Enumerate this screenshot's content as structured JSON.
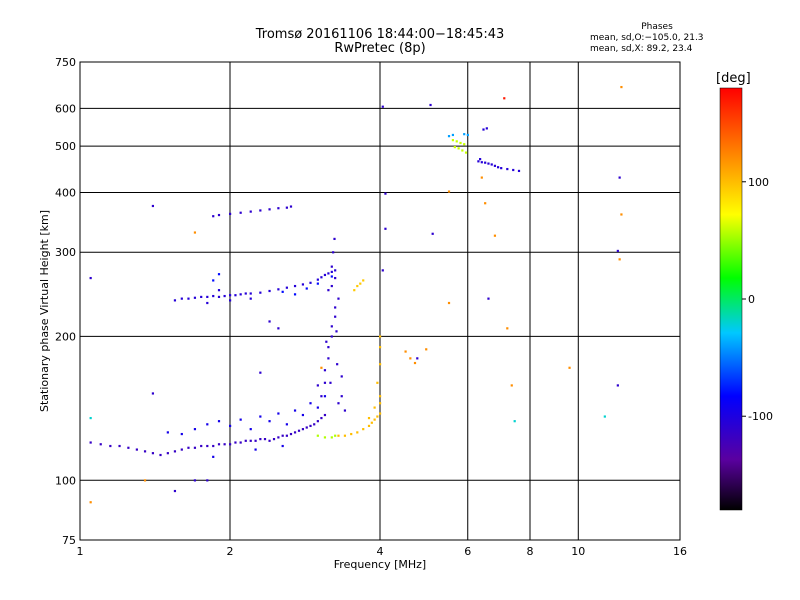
{
  "title": {
    "line1": "Tromsø 20161106 18:44:00−18:45:43",
    "line2": "RwPretec (8p)"
  },
  "phases": {
    "header": "Phases",
    "o_line": "mean, sd,O:−105.0, 21.3",
    "x_line": "mean, sd,X:  89.2, 23.4"
  },
  "chart_data": {
    "type": "scatter",
    "xlabel": "Frequency [MHz]",
    "ylabel": "Stationary phase Virtual Height [km]",
    "x_scale": "log",
    "y_scale": "log",
    "xlim": [
      1,
      16
    ],
    "ylim": [
      75,
      750
    ],
    "x_ticks": [
      1,
      2,
      4,
      6,
      8,
      10,
      16
    ],
    "y_ticks": [
      75,
      100,
      200,
      300,
      400,
      500,
      600,
      750
    ],
    "x_gridlines": [
      2,
      4,
      6,
      8,
      10
    ],
    "y_gridlines": [
      100,
      200,
      300,
      400,
      500,
      600
    ],
    "grid": true,
    "colorbar": {
      "label": "[deg]",
      "range": [
        -180,
        180
      ],
      "ticks": [
        -100,
        0,
        100
      ]
    },
    "clusters": [
      {
        "name": "E-trace",
        "phase": -115,
        "points": [
          [
            1.05,
            120
          ],
          [
            1.1,
            119
          ],
          [
            1.15,
            118
          ],
          [
            1.2,
            118
          ],
          [
            1.25,
            117
          ],
          [
            1.3,
            116
          ],
          [
            1.35,
            115
          ],
          [
            1.4,
            114
          ],
          [
            1.45,
            113
          ],
          [
            1.5,
            114
          ],
          [
            1.55,
            115
          ],
          [
            1.6,
            116
          ],
          [
            1.65,
            117
          ],
          [
            1.7,
            117
          ],
          [
            1.75,
            118
          ],
          [
            1.8,
            118
          ],
          [
            1.85,
            118
          ],
          [
            1.9,
            119
          ],
          [
            1.95,
            119
          ],
          [
            2.0,
            119
          ],
          [
            2.05,
            120
          ],
          [
            2.1,
            120
          ],
          [
            2.15,
            121
          ],
          [
            2.2,
            121
          ],
          [
            2.25,
            121
          ],
          [
            2.3,
            122
          ],
          [
            2.35,
            122
          ],
          [
            2.4,
            121
          ],
          [
            2.45,
            122
          ],
          [
            2.5,
            123
          ],
          [
            2.55,
            124
          ],
          [
            2.6,
            124
          ],
          [
            2.65,
            125
          ],
          [
            2.7,
            126
          ],
          [
            2.75,
            127
          ],
          [
            2.8,
            128
          ],
          [
            2.85,
            129
          ],
          [
            2.9,
            130
          ],
          [
            2.95,
            131
          ],
          [
            3.0,
            133
          ],
          [
            3.05,
            135
          ],
          [
            3.1,
            137
          ]
        ]
      },
      {
        "name": "E-trace-scatter",
        "phase": -95,
        "points": [
          [
            1.5,
            126
          ],
          [
            1.6,
            125
          ],
          [
            1.7,
            128
          ],
          [
            1.8,
            131
          ],
          [
            1.9,
            133
          ],
          [
            2.0,
            130
          ],
          [
            2.1,
            134
          ],
          [
            2.2,
            128
          ],
          [
            2.3,
            136
          ],
          [
            2.4,
            133
          ],
          [
            2.5,
            138
          ],
          [
            2.6,
            131
          ],
          [
            2.7,
            140
          ],
          [
            2.8,
            137
          ],
          [
            2.9,
            145
          ],
          [
            3.0,
            142
          ],
          [
            3.1,
            150
          ],
          [
            1.85,
            112
          ],
          [
            2.25,
            116
          ],
          [
            2.55,
            118
          ]
        ]
      },
      {
        "name": "F-spread-column",
        "phase": -110,
        "points": [
          [
            3.05,
            150
          ],
          [
            3.1,
            160
          ],
          [
            3.1,
            170
          ],
          [
            3.15,
            180
          ],
          [
            3.15,
            190
          ],
          [
            3.2,
            200
          ],
          [
            3.2,
            210
          ],
          [
            3.25,
            220
          ],
          [
            3.25,
            230
          ],
          [
            3.3,
            240
          ],
          [
            3.15,
            250
          ],
          [
            3.2,
            255
          ],
          [
            3.25,
            265
          ],
          [
            3.2,
            280
          ],
          [
            3.22,
            300
          ],
          [
            3.24,
            320
          ],
          [
            3.18,
            160
          ],
          [
            3.28,
            175
          ],
          [
            3.3,
            145
          ],
          [
            3.35,
            150
          ],
          [
            3.4,
            140
          ],
          [
            3.0,
            158
          ],
          [
            3.35,
            165
          ],
          [
            3.12,
            195
          ],
          [
            3.27,
            205
          ]
        ]
      },
      {
        "name": "F-trace-O",
        "phase": 100,
        "points": [
          [
            3.3,
            124
          ],
          [
            3.4,
            124
          ],
          [
            3.5,
            125
          ],
          [
            3.6,
            126
          ],
          [
            3.7,
            128
          ],
          [
            3.8,
            130
          ],
          [
            3.85,
            132
          ],
          [
            3.9,
            134
          ],
          [
            3.95,
            136
          ],
          [
            4.0,
            138
          ],
          [
            4.0,
            145
          ],
          [
            4.0,
            150
          ],
          [
            3.95,
            160
          ],
          [
            4.0,
            175
          ],
          [
            4.0,
            190
          ],
          [
            4.0,
            200
          ],
          [
            3.9,
            142
          ],
          [
            3.8,
            135
          ]
        ]
      },
      {
        "name": "F-trace-O-green",
        "phase": 55,
        "points": [
          [
            3.0,
            124
          ],
          [
            3.1,
            123
          ],
          [
            3.2,
            123
          ],
          [
            3.25,
            124
          ]
        ]
      },
      {
        "name": "F2-upper-trace",
        "phase": -105,
        "points": [
          [
            1.55,
            238
          ],
          [
            1.6,
            240
          ],
          [
            1.65,
            240
          ],
          [
            1.7,
            241
          ],
          [
            1.75,
            242
          ],
          [
            1.8,
            242
          ],
          [
            1.85,
            243
          ],
          [
            1.9,
            242
          ],
          [
            1.95,
            243
          ],
          [
            2.0,
            244
          ],
          [
            2.05,
            244
          ],
          [
            2.1,
            245
          ],
          [
            2.15,
            246
          ],
          [
            2.2,
            246
          ],
          [
            2.3,
            247
          ],
          [
            2.4,
            249
          ],
          [
            2.5,
            251
          ],
          [
            2.6,
            253
          ],
          [
            2.7,
            255
          ],
          [
            2.8,
            257
          ],
          [
            2.9,
            259
          ],
          [
            3.0,
            263
          ],
          [
            3.05,
            266
          ],
          [
            3.1,
            269
          ],
          [
            3.15,
            271
          ],
          [
            3.2,
            273
          ],
          [
            3.25,
            275
          ],
          [
            1.8,
            235
          ],
          [
            2.0,
            238
          ],
          [
            2.2,
            240
          ],
          [
            1.9,
            250
          ]
        ]
      },
      {
        "name": "F2-upper-scatter",
        "phase": -80,
        "points": [
          [
            2.55,
            248
          ],
          [
            2.7,
            245
          ],
          [
            2.85,
            252
          ],
          [
            3.0,
            258
          ],
          [
            1.85,
            262
          ],
          [
            1.9,
            270
          ],
          [
            3.2,
            267
          ]
        ]
      },
      {
        "name": "F-high-trace",
        "phase": -110,
        "points": [
          [
            1.85,
            357
          ],
          [
            1.9,
            359
          ],
          [
            2.0,
            361
          ],
          [
            2.1,
            363
          ],
          [
            2.2,
            365
          ],
          [
            2.3,
            367
          ],
          [
            2.4,
            369
          ],
          [
            2.5,
            371
          ],
          [
            2.6,
            372
          ],
          [
            2.65,
            374
          ],
          [
            1.4,
            375
          ]
        ]
      },
      {
        "name": "F-yellow-segment",
        "phase": 95,
        "points": [
          [
            3.55,
            250
          ],
          [
            3.6,
            255
          ],
          [
            3.65,
            258
          ],
          [
            3.7,
            262
          ]
        ]
      },
      {
        "name": "F-x-cluster",
        "phase": -105,
        "points": [
          [
            6.3,
            465
          ],
          [
            6.4,
            463
          ],
          [
            6.5,
            462
          ],
          [
            6.6,
            460
          ],
          [
            6.7,
            458
          ],
          [
            6.8,
            455
          ],
          [
            6.9,
            452
          ],
          [
            7.0,
            450
          ],
          [
            7.2,
            448
          ],
          [
            7.4,
            446
          ],
          [
            7.6,
            444
          ],
          [
            6.45,
            542
          ],
          [
            6.55,
            545
          ],
          [
            6.35,
            470
          ]
        ]
      },
      {
        "name": "F-x-green",
        "phase": 60,
        "points": [
          [
            5.6,
            515
          ],
          [
            5.7,
            512
          ],
          [
            5.8,
            508
          ],
          [
            5.9,
            505
          ],
          [
            5.75,
            495
          ],
          [
            5.85,
            490
          ],
          [
            5.65,
            498
          ],
          [
            5.95,
            485
          ]
        ]
      },
      {
        "name": "F-x-cyan",
        "phase": -40,
        "points": [
          [
            5.5,
            525
          ],
          [
            5.6,
            528
          ],
          [
            5.9,
            530
          ],
          [
            6.0,
            528
          ]
        ]
      },
      {
        "name": "scattered-warm",
        "phase": 120,
        "points": [
          [
            1.05,
            90
          ],
          [
            1.35,
            100
          ],
          [
            1.7,
            330
          ],
          [
            3.05,
            172
          ],
          [
            4.5,
            186
          ],
          [
            4.6,
            180
          ],
          [
            4.7,
            176
          ],
          [
            4.95,
            188
          ],
          [
            6.5,
            380
          ],
          [
            6.8,
            325
          ],
          [
            7.2,
            208
          ],
          [
            7.35,
            158
          ],
          [
            9.6,
            172
          ],
          [
            12.1,
            290
          ],
          [
            12.2,
            360
          ],
          [
            12.2,
            665
          ],
          [
            5.5,
            235
          ],
          [
            5.5,
            402
          ],
          [
            6.4,
            430
          ]
        ]
      },
      {
        "name": "scattered-cool",
        "phase": -110,
        "points": [
          [
            1.05,
            265
          ],
          [
            1.4,
            152
          ],
          [
            1.55,
            95
          ],
          [
            1.7,
            100
          ],
          [
            1.8,
            100
          ],
          [
            2.3,
            168
          ],
          [
            2.4,
            215
          ],
          [
            2.5,
            208
          ],
          [
            4.05,
            605
          ],
          [
            4.05,
            275
          ],
          [
            4.1,
            336
          ],
          [
            4.1,
            398
          ],
          [
            4.75,
            180
          ],
          [
            5.05,
            610
          ],
          [
            5.1,
            328
          ],
          [
            6.6,
            240
          ],
          [
            12.0,
            302
          ],
          [
            12.0,
            158
          ],
          [
            12.1,
            430
          ]
        ]
      },
      {
        "name": "scattered-red",
        "phase": 170,
        "points": [
          [
            7.1,
            630
          ]
        ]
      },
      {
        "name": "scattered-cyan",
        "phase": -20,
        "points": [
          [
            1.05,
            135
          ],
          [
            7.45,
            133
          ],
          [
            11.3,
            136
          ]
        ]
      }
    ]
  }
}
